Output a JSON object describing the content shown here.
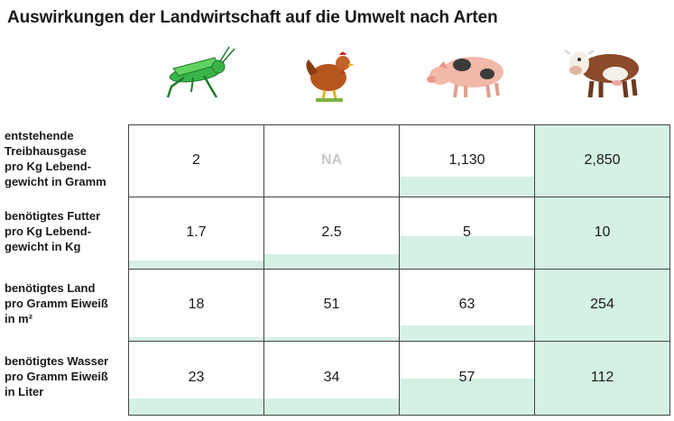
{
  "chart_data": {
    "type": "table",
    "title": "Auswirkungen der Landwirtschaft auf die Umwelt nach Arten",
    "columns": [
      {
        "animal": "grasshopper-icon"
      },
      {
        "animal": "chicken-icon"
      },
      {
        "animal": "pig-icon"
      },
      {
        "animal": "cow-icon"
      }
    ],
    "rows": [
      {
        "label_lines": [
          "entstehende",
          "Treibhausgase",
          "pro Kg Lebend-",
          "gewicht in Gramm"
        ],
        "values": [
          "2",
          "NA",
          "1,130",
          "2,850"
        ],
        "fill": [
          0,
          0,
          0.28,
          1
        ]
      },
      {
        "label_lines": [
          "benötigtes Futter",
          "pro Kg Lebend-",
          "gewicht in Kg"
        ],
        "values": [
          "1.7",
          "2.5",
          "5",
          "10"
        ],
        "fill": [
          0.12,
          0.2,
          0.45,
          1
        ]
      },
      {
        "label_lines": [
          "benötigtes Land",
          "pro Gramm Eiweiß",
          "in m²"
        ],
        "values": [
          "18",
          "51",
          "63",
          "254"
        ],
        "fill": [
          0.05,
          0.05,
          0.22,
          1
        ]
      },
      {
        "label_lines": [
          "benötigtes Wasser",
          "pro Gramm Eiweiß",
          "in Liter"
        ],
        "values": [
          "23",
          "34",
          "57",
          "112"
        ],
        "fill": [
          0.22,
          0.22,
          0.5,
          1
        ]
      }
    ]
  },
  "colors": {
    "fill": "#d4f1e4",
    "na_text": "#c9c9c9",
    "border": "#444444"
  }
}
